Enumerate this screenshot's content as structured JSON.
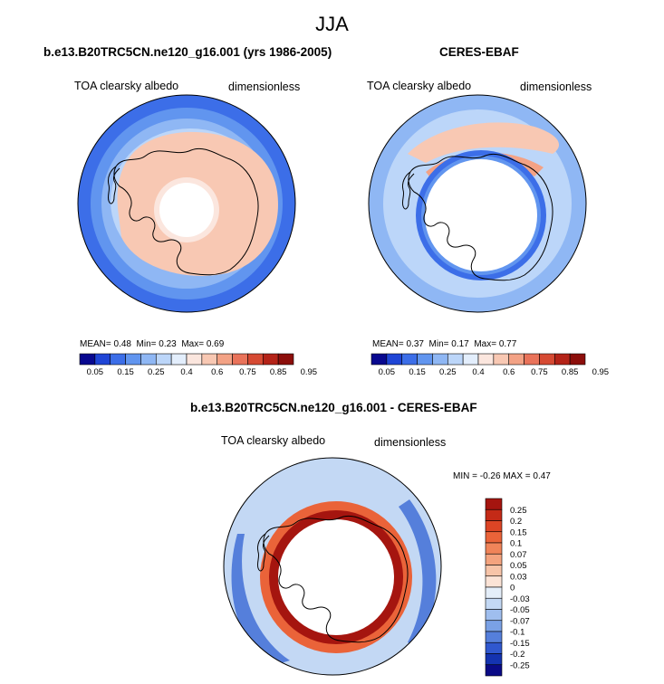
{
  "title": "JJA",
  "panels": [
    {
      "title": "b.e13.B20TRC5CN.ne120_g16.001 (yrs 1986-2005)",
      "left_label": "TOA clearsky albedo",
      "right_label": "dimensionless",
      "stats": {
        "mean_label": "MEAN=",
        "mean": "0.48",
        "min_label": "Min=",
        "min": "0.23",
        "max_label": "Max=",
        "max": "0.69"
      }
    },
    {
      "title": "CERES-EBAF",
      "left_label": "TOA clearsky albedo",
      "right_label": "dimensionless",
      "stats": {
        "mean_label": "MEAN=",
        "mean": "0.37",
        "min_label": "Min=",
        "min": "0.17",
        "max_label": "Max=",
        "max": "0.77"
      }
    },
    {
      "title": "b.e13.B20TRC5CN.ne120_g16.001 - CERES-EBAF",
      "left_label": "TOA clearsky albedo",
      "right_label": "dimensionless",
      "stats": {
        "min_label": "MIN =",
        "min": "-0.26",
        "max_label": "MAX =",
        "max": "0.47"
      }
    }
  ],
  "chart_data": [
    {
      "type": "heatmap",
      "projection": "south polar stereographic",
      "title": "b.e13.B20TRC5CN.ne120_g16.001 (yrs 1986-2005)",
      "variable": "TOA clearsky albedo",
      "units": "dimensionless",
      "mean": 0.48,
      "min": 0.23,
      "max": 0.69,
      "levels": [
        "0.05",
        "0.15",
        "0.25",
        "0.4",
        "0.6",
        "0.75",
        "0.85",
        "0.95"
      ],
      "colorbar": [
        "#08088f",
        "#1f45d6",
        "#3c6ee8",
        "#6195ef",
        "#8fb7f4",
        "#bcd6f9",
        "#e3eefc",
        "#fbe6de",
        "#f8c8b3",
        "#f3a285",
        "#e9735a",
        "#d64a33",
        "#b42318",
        "#8c0e0b"
      ]
    },
    {
      "type": "heatmap",
      "projection": "south polar stereographic",
      "title": "CERES-EBAF",
      "variable": "TOA clearsky albedo",
      "units": "dimensionless",
      "mean": 0.37,
      "min": 0.17,
      "max": 0.77,
      "levels": [
        "0.05",
        "0.15",
        "0.25",
        "0.4",
        "0.6",
        "0.75",
        "0.85",
        "0.95"
      ],
      "colorbar": [
        "#08088f",
        "#1f45d6",
        "#3c6ee8",
        "#6195ef",
        "#8fb7f4",
        "#bcd6f9",
        "#e3eefc",
        "#fbe6de",
        "#f8c8b3",
        "#f3a285",
        "#e9735a",
        "#d64a33",
        "#b42318",
        "#8c0e0b"
      ]
    },
    {
      "type": "heatmap",
      "projection": "south polar stereographic",
      "title": "b.e13.B20TRC5CN.ne120_g16.001 - CERES-EBAF",
      "variable": "TOA clearsky albedo",
      "units": "dimensionless",
      "min": -0.26,
      "max": 0.47,
      "levels": [
        "0.25",
        "0.2",
        "0.15",
        "0.1",
        "0.07",
        "0.05",
        "0.03",
        "0",
        "-0.03",
        "-0.05",
        "-0.07",
        "-0.1",
        "-0.15",
        "-0.2",
        "-0.25"
      ],
      "colorbar": [
        "#a5150f",
        "#c42a17",
        "#dc4525",
        "#ea6339",
        "#f08459",
        "#f4a37e",
        "#f7c4a8",
        "#fbe3d6",
        "#e4eef9",
        "#c3d8f4",
        "#9fbeee",
        "#7aa1e5",
        "#557fdb",
        "#3058cf",
        "#1433b0",
        "#0a0a86"
      ]
    }
  ]
}
